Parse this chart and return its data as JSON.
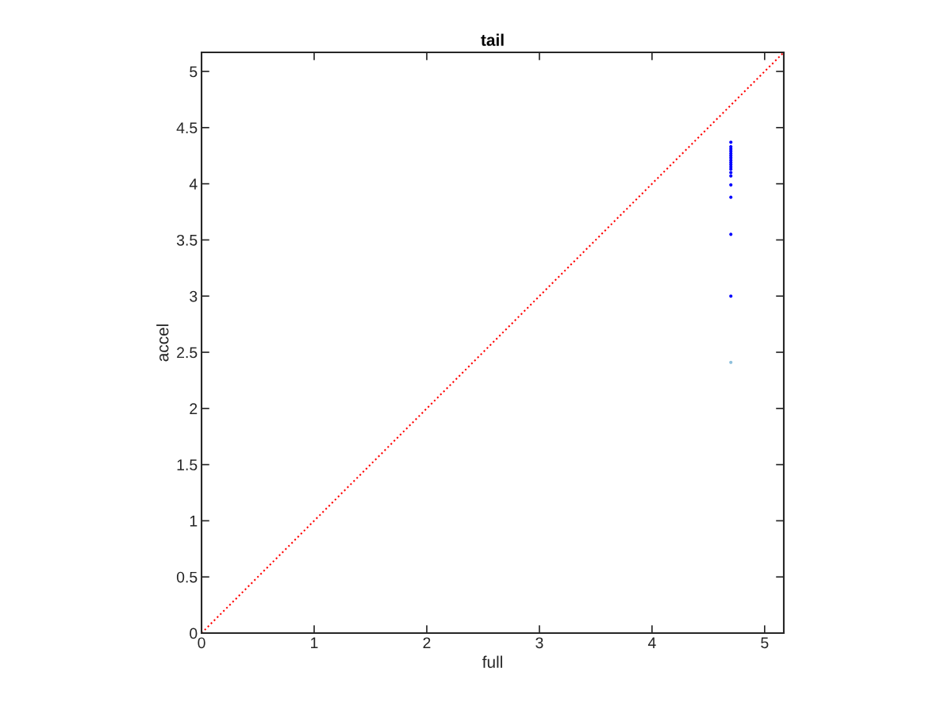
{
  "chart_data": {
    "type": "scatter",
    "title": "tail",
    "xlabel": "full",
    "ylabel": "accel",
    "xlim": [
      0,
      5.17
    ],
    "ylim": [
      0,
      5.17
    ],
    "xticks": [
      0,
      1,
      2,
      3,
      4,
      5
    ],
    "yticks": [
      0,
      0.5,
      1,
      1.5,
      2,
      2.5,
      3,
      3.5,
      4,
      4.5,
      5
    ],
    "grid": false,
    "legend": false,
    "series": [
      {
        "type": "line",
        "color": "#ff0000",
        "line_style": "dotted",
        "marker": "none",
        "x": [
          0,
          5.17
        ],
        "values": [
          0,
          5.17
        ]
      },
      {
        "color": "#0000ff",
        "marker": "circle",
        "x": [
          4.7,
          4.7,
          4.7,
          4.7,
          4.7,
          4.7,
          4.7,
          4.7,
          4.7,
          4.7,
          4.7,
          4.7,
          4.7,
          4.7,
          4.7,
          4.7,
          4.7,
          4.7
        ],
        "values": [
          4.37,
          4.33,
          4.31,
          4.29,
          4.27,
          4.25,
          4.23,
          4.21,
          4.19,
          4.17,
          4.15,
          4.13,
          4.1,
          4.07,
          3.99,
          3.88,
          3.55,
          3.0
        ]
      },
      {
        "color": "#8ec0dc",
        "marker": "circle",
        "x": [
          4.7
        ],
        "values": [
          2.41
        ]
      }
    ]
  }
}
